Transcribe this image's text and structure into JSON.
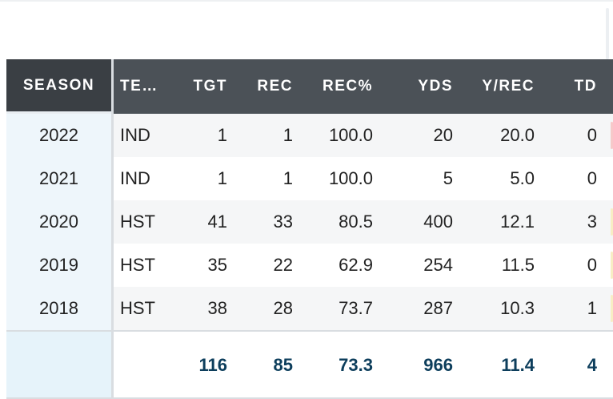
{
  "table": {
    "headers": [
      "SEASON",
      "TE…",
      "TGT",
      "REC",
      "REC%",
      "YDS",
      "Y/REC",
      "TD"
    ],
    "rows": [
      {
        "season": "2022",
        "team": "IND",
        "tgt": "1",
        "rec": "1",
        "rec_pct": "100.0",
        "yds": "20",
        "y_rec": "20.0",
        "td": "0"
      },
      {
        "season": "2021",
        "team": "IND",
        "tgt": "1",
        "rec": "1",
        "rec_pct": "100.0",
        "yds": "5",
        "y_rec": "5.0",
        "td": "0"
      },
      {
        "season": "2020",
        "team": "HST",
        "tgt": "41",
        "rec": "33",
        "rec_pct": "80.5",
        "yds": "400",
        "y_rec": "12.1",
        "td": "3"
      },
      {
        "season": "2019",
        "team": "HST",
        "tgt": "35",
        "rec": "22",
        "rec_pct": "62.9",
        "yds": "254",
        "y_rec": "11.5",
        "td": "0"
      },
      {
        "season": "2018",
        "team": "HST",
        "tgt": "38",
        "rec": "28",
        "rec_pct": "73.7",
        "yds": "287",
        "y_rec": "10.3",
        "td": "1"
      }
    ],
    "totals": {
      "tgt": "116",
      "rec": "85",
      "rec_pct": "73.3",
      "yds": "966",
      "y_rec": "11.4",
      "td": "4"
    }
  },
  "colors": {
    "header_bg": "#4b5157",
    "season_header_bg": "#3a3f44",
    "totals_text": "#0d3e5c",
    "season_column_bg": "#eef6fb",
    "edge_red": "#f6c9c9",
    "edge_yellow": "#f8edc4"
  }
}
